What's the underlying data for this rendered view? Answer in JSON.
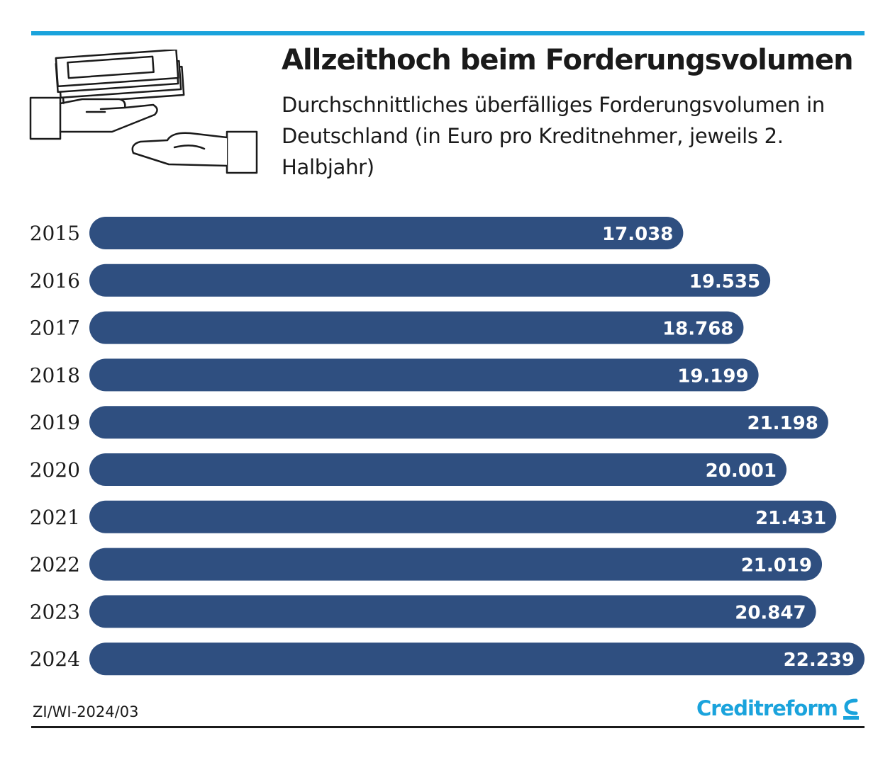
{
  "header": {
    "title": "Allzeithoch beim Forderungsvolumen",
    "subtitle": "Durchschnittliches überfälliges Forderungsvolumen in Deutschland (in Euro pro Kreditnehmer, jeweils 2. Halbjahr)",
    "illustration_icon": "hand-passing-money-icon"
  },
  "footer": {
    "source_code": "ZI/WI-2024/03",
    "brand_name": "Creditreform",
    "brand_icon": "creditreform-logo-icon"
  },
  "colors": {
    "accent": "#1aa3dc",
    "bar": "#2f4f80",
    "bar_label": "#ffffff",
    "text": "#1a1a1a"
  },
  "chart_data": {
    "type": "bar",
    "orientation": "horizontal",
    "title": "Allzeithoch beim Forderungsvolumen",
    "xlabel": "",
    "ylabel": "",
    "xlim": [
      0,
      22239
    ],
    "grid": false,
    "categories": [
      "2015",
      "2016",
      "2017",
      "2018",
      "2019",
      "2020",
      "2021",
      "2022",
      "2023",
      "2024"
    ],
    "values": [
      17038,
      19535,
      18768,
      19199,
      21198,
      20001,
      21431,
      21019,
      20847,
      22239
    ],
    "value_labels": [
      "17.038",
      "19.535",
      "18.768",
      "19.199",
      "21.198",
      "20.001",
      "21.431",
      "21.019",
      "20.847",
      "22.239"
    ]
  }
}
